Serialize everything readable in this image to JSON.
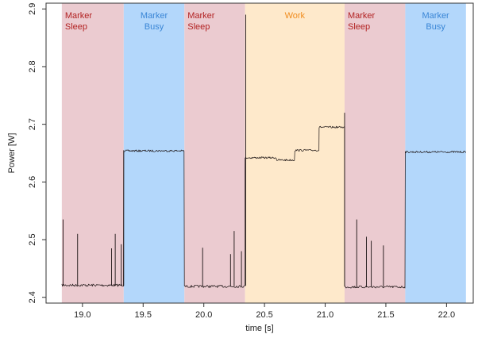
{
  "chart_data": {
    "type": "line",
    "title": "",
    "xlabel": "time [s]",
    "ylabel": "Power [W]",
    "xlim": [
      18.7,
      22.22
    ],
    "ylim": [
      2.39,
      2.91
    ],
    "x_ticks": [
      19.0,
      19.5,
      20.0,
      20.5,
      21.0,
      21.5,
      22.0
    ],
    "x_tick_labels": [
      "19.0",
      "19.5",
      "20.0",
      "20.5",
      "21.0",
      "21.5",
      "22.0"
    ],
    "y_ticks": [
      2.4,
      2.5,
      2.6,
      2.7,
      2.8,
      2.9
    ],
    "y_tick_labels": [
      "2.4",
      "2.5",
      "2.6",
      "2.7",
      "2.8",
      "2.9"
    ],
    "grid": false,
    "legend": "none",
    "colors": {
      "sleep_fill": "#ebcbd0",
      "busy_fill": "#b3d7fb",
      "work_fill": "#fee9cb",
      "sleep_text": "#b22222",
      "busy_text": "#3a86d6",
      "work_text": "#f08c1e",
      "line": "#1a1212"
    },
    "regions": [
      {
        "kind": "sleep",
        "label_line1": "Marker",
        "label_line2": "Sleep",
        "x_start": 18.83,
        "x_end": 19.34
      },
      {
        "kind": "busy",
        "label_line1": "Marker",
        "label_line2": "Busy",
        "x_start": 19.34,
        "x_end": 19.84
      },
      {
        "kind": "sleep",
        "label_line1": "Marker",
        "label_line2": "Sleep",
        "x_start": 19.84,
        "x_end": 20.34
      },
      {
        "kind": "work",
        "label_line1": "Work",
        "label_line2": "",
        "x_start": 20.34,
        "x_end": 21.16
      },
      {
        "kind": "sleep",
        "label_line1": "Marker",
        "label_line2": "Sleep",
        "x_start": 21.16,
        "x_end": 21.66
      },
      {
        "kind": "busy",
        "label_line1": "Marker",
        "label_line2": "Busy",
        "x_start": 21.66,
        "x_end": 22.16
      }
    ],
    "series": [
      {
        "segments": [
          {
            "x_start": 18.83,
            "x_end": 19.34,
            "level": 2.421
          },
          {
            "x_start": 19.34,
            "x_end": 19.84,
            "level": 2.654
          },
          {
            "x_start": 19.84,
            "x_end": 20.34,
            "level": 2.419
          },
          {
            "x_start": 20.34,
            "x_end": 20.6,
            "level": 2.642
          },
          {
            "x_start": 20.6,
            "x_end": 20.75,
            "level": 2.638
          },
          {
            "x_start": 20.75,
            "x_end": 20.95,
            "level": 2.655
          },
          {
            "x_start": 20.95,
            "x_end": 21.16,
            "level": 2.695
          },
          {
            "x_start": 21.16,
            "x_end": 21.66,
            "level": 2.418
          },
          {
            "x_start": 21.66,
            "x_end": 22.16,
            "level": 2.652
          }
        ],
        "spikes": [
          {
            "x": 18.84,
            "y": 2.535
          },
          {
            "x": 18.96,
            "y": 2.51
          },
          {
            "x": 19.24,
            "y": 2.485
          },
          {
            "x": 19.27,
            "y": 2.51
          },
          {
            "x": 19.32,
            "y": 2.492
          },
          {
            "x": 19.34,
            "y": 2.655
          },
          {
            "x": 19.99,
            "y": 2.486
          },
          {
            "x": 20.22,
            "y": 2.475
          },
          {
            "x": 20.25,
            "y": 2.515
          },
          {
            "x": 20.31,
            "y": 2.48
          },
          {
            "x": 20.345,
            "y": 2.89
          },
          {
            "x": 21.16,
            "y": 2.72
          },
          {
            "x": 21.26,
            "y": 2.535
          },
          {
            "x": 21.34,
            "y": 2.505
          },
          {
            "x": 21.38,
            "y": 2.498
          },
          {
            "x": 21.48,
            "y": 2.49
          }
        ]
      }
    ]
  }
}
